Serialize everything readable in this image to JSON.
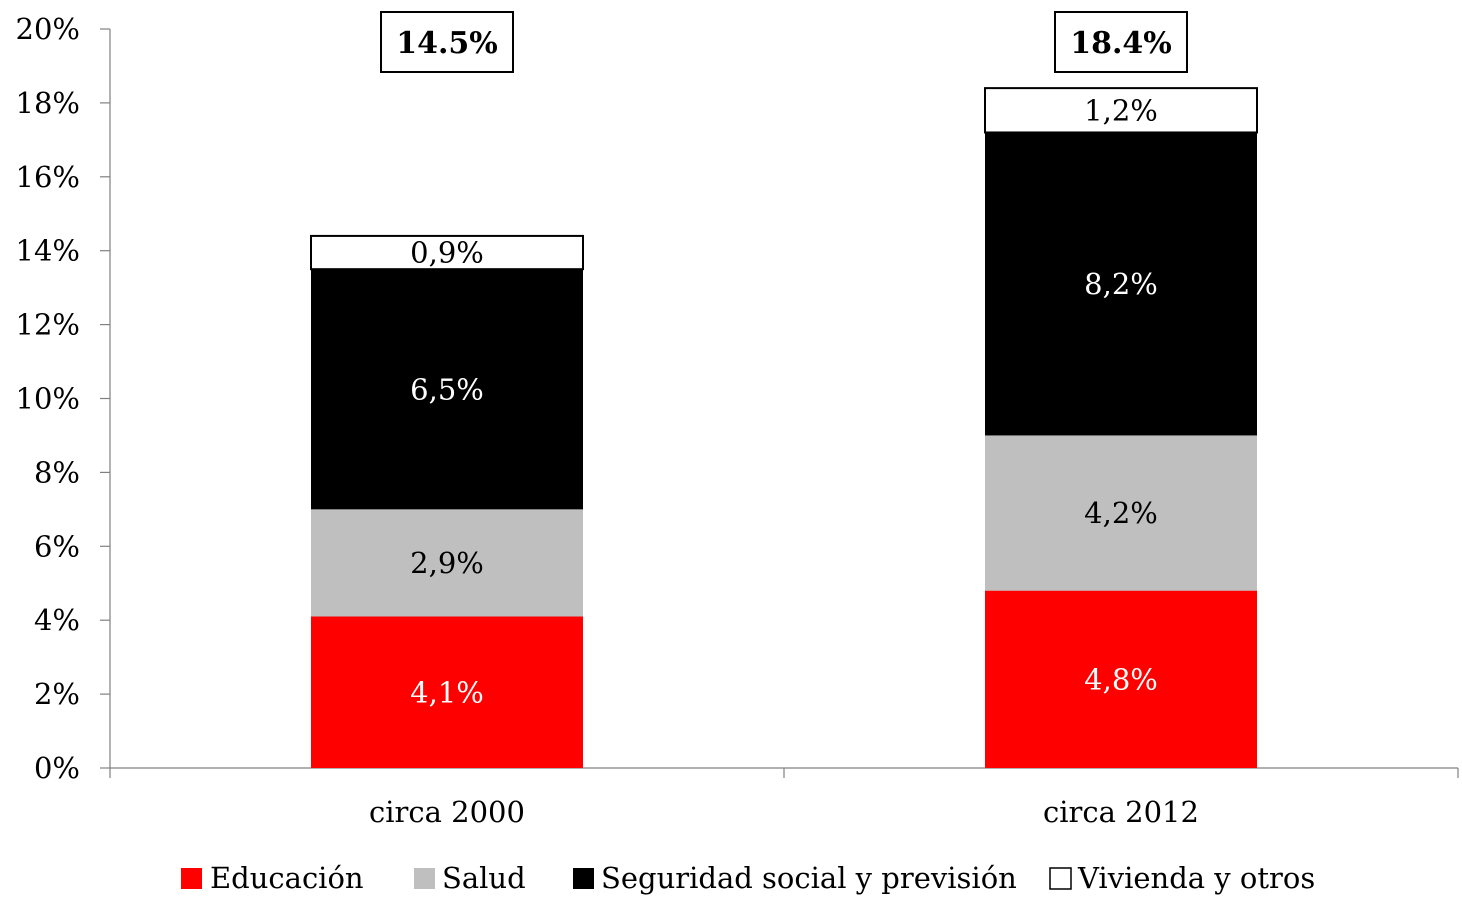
{
  "chart_data": {
    "type": "bar",
    "stacked": true,
    "title": "",
    "xlabel": "",
    "ylabel": "",
    "ylim": [
      0,
      20
    ],
    "y_ticks": [
      0,
      2,
      4,
      6,
      8,
      10,
      12,
      14,
      16,
      18,
      20
    ],
    "y_tick_labels": [
      "0%",
      "2%",
      "4%",
      "6%",
      "8%",
      "10%",
      "12%",
      "14%",
      "16%",
      "18%",
      "20%"
    ],
    "categories": [
      "circa 2000",
      "circa 2012"
    ],
    "totals": [
      14.5,
      18.4
    ],
    "total_labels": [
      "14.5%",
      "18.4%"
    ],
    "series": [
      {
        "name": "Educación",
        "color": "#ff0000",
        "text_color": "#ffffff",
        "values": [
          4.1,
          4.8
        ],
        "labels": [
          "4,1%",
          "4,8%"
        ]
      },
      {
        "name": "Salud",
        "color": "#bfbfbf",
        "text_color": "#000000",
        "values": [
          2.9,
          4.2
        ],
        "labels": [
          "2,9%",
          "4,2%"
        ]
      },
      {
        "name": "Seguridad social y previsión",
        "color": "#000000",
        "text_color": "#ffffff",
        "values": [
          6.5,
          8.2
        ],
        "labels": [
          "6,5%",
          "8,2%"
        ]
      },
      {
        "name": "Vivienda y otros",
        "color": "#ffffff",
        "text_color": "#000000",
        "values": [
          0.9,
          1.2
        ],
        "labels": [
          "0,9%",
          "1,2%"
        ]
      }
    ],
    "grid": false,
    "legend_position": "bottom"
  }
}
